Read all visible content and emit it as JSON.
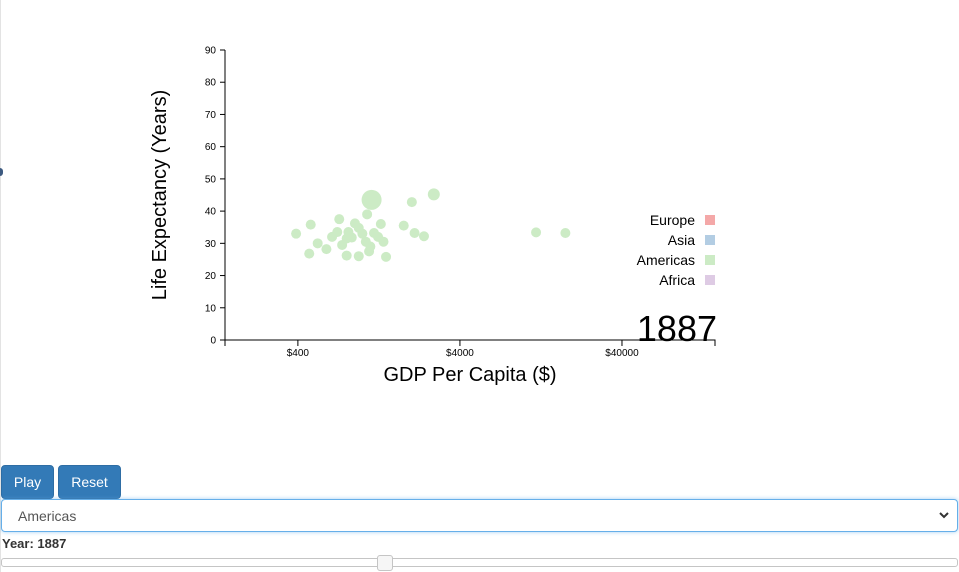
{
  "chart_data": {
    "type": "scatter",
    "xlabel": "GDP Per Capita ($)",
    "ylabel": "Life Expectancy (Years)",
    "x_scale": "log",
    "xlim": [
      142,
      150000
    ],
    "ylim": [
      0,
      90
    ],
    "x_ticks": [
      {
        "value": 400,
        "label": "$400"
      },
      {
        "value": 4000,
        "label": "$4000"
      },
      {
        "value": 40000,
        "label": "$40000"
      }
    ],
    "y_ticks": [
      0,
      10,
      20,
      30,
      40,
      50,
      60,
      70,
      80,
      90
    ],
    "year_label": "1887",
    "legend": [
      {
        "name": "Europe",
        "color": "#f4a8a8"
      },
      {
        "name": "Asia",
        "color": "#b3cde3"
      },
      {
        "name": "Americas",
        "color": "#ccebc5"
      },
      {
        "name": "Africa",
        "color": "#decbe4"
      }
    ],
    "point_color": "#ccebc5",
    "series": [
      {
        "name": "Americas",
        "points": [
          {
            "x": 1140,
            "y": 43.5,
            "r": 10
          },
          {
            "x": 2760,
            "y": 45.2,
            "r": 6
          },
          {
            "x": 11800,
            "y": 33.4,
            "r": 5
          },
          {
            "x": 17900,
            "y": 33.2,
            "r": 5
          },
          {
            "x": 2020,
            "y": 42.8,
            "r": 5
          },
          {
            "x": 1070,
            "y": 39.0,
            "r": 5
          },
          {
            "x": 720,
            "y": 37.5,
            "r": 5
          },
          {
            "x": 480,
            "y": 35.8,
            "r": 5
          },
          {
            "x": 530,
            "y": 30.0,
            "r": 5
          },
          {
            "x": 470,
            "y": 26.8,
            "r": 5
          },
          {
            "x": 390,
            "y": 33.0,
            "r": 5
          },
          {
            "x": 600,
            "y": 28.2,
            "r": 5
          },
          {
            "x": 650,
            "y": 32.0,
            "r": 5
          },
          {
            "x": 700,
            "y": 33.5,
            "r": 5
          },
          {
            "x": 750,
            "y": 29.5,
            "r": 5
          },
          {
            "x": 800,
            "y": 31.5,
            "r": 5
          },
          {
            "x": 820,
            "y": 33.5,
            "r": 5
          },
          {
            "x": 860,
            "y": 31.8,
            "r": 5
          },
          {
            "x": 900,
            "y": 36.2,
            "r": 5
          },
          {
            "x": 950,
            "y": 34.8,
            "r": 5
          },
          {
            "x": 1000,
            "y": 33.0,
            "r": 5
          },
          {
            "x": 1050,
            "y": 30.5,
            "r": 5
          },
          {
            "x": 1100,
            "y": 27.5,
            "r": 5
          },
          {
            "x": 1120,
            "y": 29.0,
            "r": 5
          },
          {
            "x": 1180,
            "y": 33.2,
            "r": 5
          },
          {
            "x": 1250,
            "y": 32.0,
            "r": 5
          },
          {
            "x": 1300,
            "y": 36.0,
            "r": 5
          },
          {
            "x": 1350,
            "y": 30.5,
            "r": 5
          },
          {
            "x": 1400,
            "y": 25.8,
            "r": 5
          },
          {
            "x": 950,
            "y": 26.0,
            "r": 5
          },
          {
            "x": 800,
            "y": 26.2,
            "r": 5
          },
          {
            "x": 1800,
            "y": 35.5,
            "r": 5
          },
          {
            "x": 2400,
            "y": 32.2,
            "r": 5
          },
          {
            "x": 2100,
            "y": 33.2,
            "r": 5
          }
        ]
      }
    ]
  },
  "controls": {
    "play_label": "Play",
    "reset_label": "Reset",
    "continent_selected": "Americas",
    "year_label": "Year: 1887",
    "slider_fraction": 0.4
  }
}
